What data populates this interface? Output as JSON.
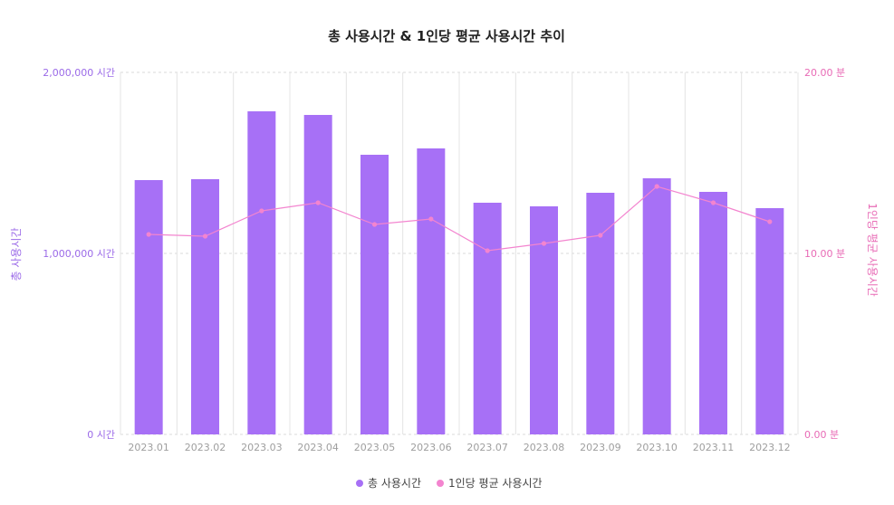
{
  "colors": {
    "bar": "#a770f6",
    "line": "#f384cf",
    "grid": "#d9d9d9",
    "left_axis_text": "#9b6ae8",
    "right_axis_text": "#e86bb6",
    "x_tick_text": "#9e9e9e",
    "title_text": "#222222",
    "legend_text": "#444444"
  },
  "chart_data": {
    "type": "bar",
    "combo": "bar + line (dual axis)",
    "title": "총 사용시간 & 1인당 평균 사용시간 추이",
    "categories": [
      "2023.01",
      "2023.02",
      "2023.03",
      "2023.04",
      "2023.05",
      "2023.06",
      "2023.07",
      "2023.08",
      "2023.09",
      "2023.10",
      "2023.11",
      "2023.12"
    ],
    "series": [
      {
        "name": "총 사용시간",
        "type": "bar",
        "axis": "left",
        "values": [
          1405000,
          1410000,
          1785000,
          1765000,
          1545000,
          1580000,
          1280000,
          1260000,
          1335000,
          1415000,
          1340000,
          1250000
        ]
      },
      {
        "name": "1인당 평균 사용시간",
        "type": "line",
        "axis": "right",
        "values": [
          11.05,
          10.95,
          12.35,
          12.8,
          11.6,
          11.9,
          10.15,
          10.55,
          11.0,
          13.7,
          12.8,
          11.75
        ]
      }
    ],
    "left_axis": {
      "label": "총 사용시간",
      "ylim": [
        0,
        2000000
      ],
      "ticks": [
        {
          "value": 0,
          "label": "0 시간"
        },
        {
          "value": 1000000,
          "label": "1,000,000 시간"
        },
        {
          "value": 2000000,
          "label": "2,000,000 시간"
        }
      ]
    },
    "right_axis": {
      "label": "1인당 평균 사용시간",
      "ylim": [
        0,
        20
      ],
      "ticks": [
        {
          "value": 0,
          "label": "0.00 분"
        },
        {
          "value": 10,
          "label": "10.00 분"
        },
        {
          "value": 20,
          "label": "20.00 분"
        }
      ]
    },
    "grid": true,
    "legend_position": "bottom-center"
  }
}
